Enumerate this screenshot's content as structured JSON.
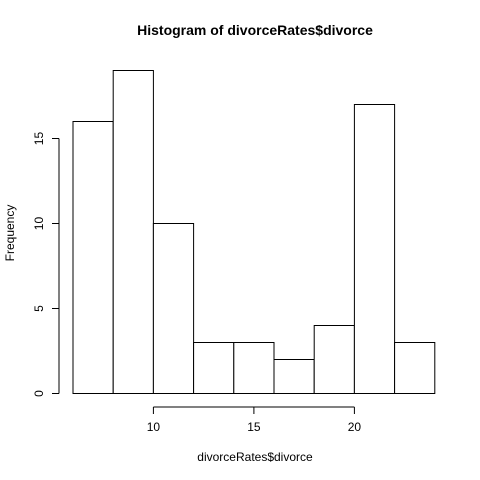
{
  "chart_data": {
    "type": "bar",
    "title": "Histogram of divorceRates$divorce",
    "xlabel": "divorceRates$divorce",
    "ylabel": "Frequency",
    "bins": [
      {
        "from": 6,
        "to": 8,
        "count": 16
      },
      {
        "from": 8,
        "to": 10,
        "count": 19
      },
      {
        "from": 10,
        "to": 12,
        "count": 10
      },
      {
        "from": 12,
        "to": 14,
        "count": 3
      },
      {
        "from": 14,
        "to": 16,
        "count": 3
      },
      {
        "from": 16,
        "to": 18,
        "count": 2
      },
      {
        "from": 18,
        "to": 20,
        "count": 4
      },
      {
        "from": 20,
        "to": 22,
        "count": 17
      },
      {
        "from": 22,
        "to": 24,
        "count": 3
      }
    ],
    "xlim": [
      6,
      24
    ],
    "ylim": [
      0,
      19
    ],
    "x_ticks": [
      10,
      15,
      20
    ],
    "y_ticks": [
      0,
      5,
      10,
      15
    ],
    "grid": false,
    "bar_fill": "#ffffff",
    "bar_stroke": "#000000"
  }
}
